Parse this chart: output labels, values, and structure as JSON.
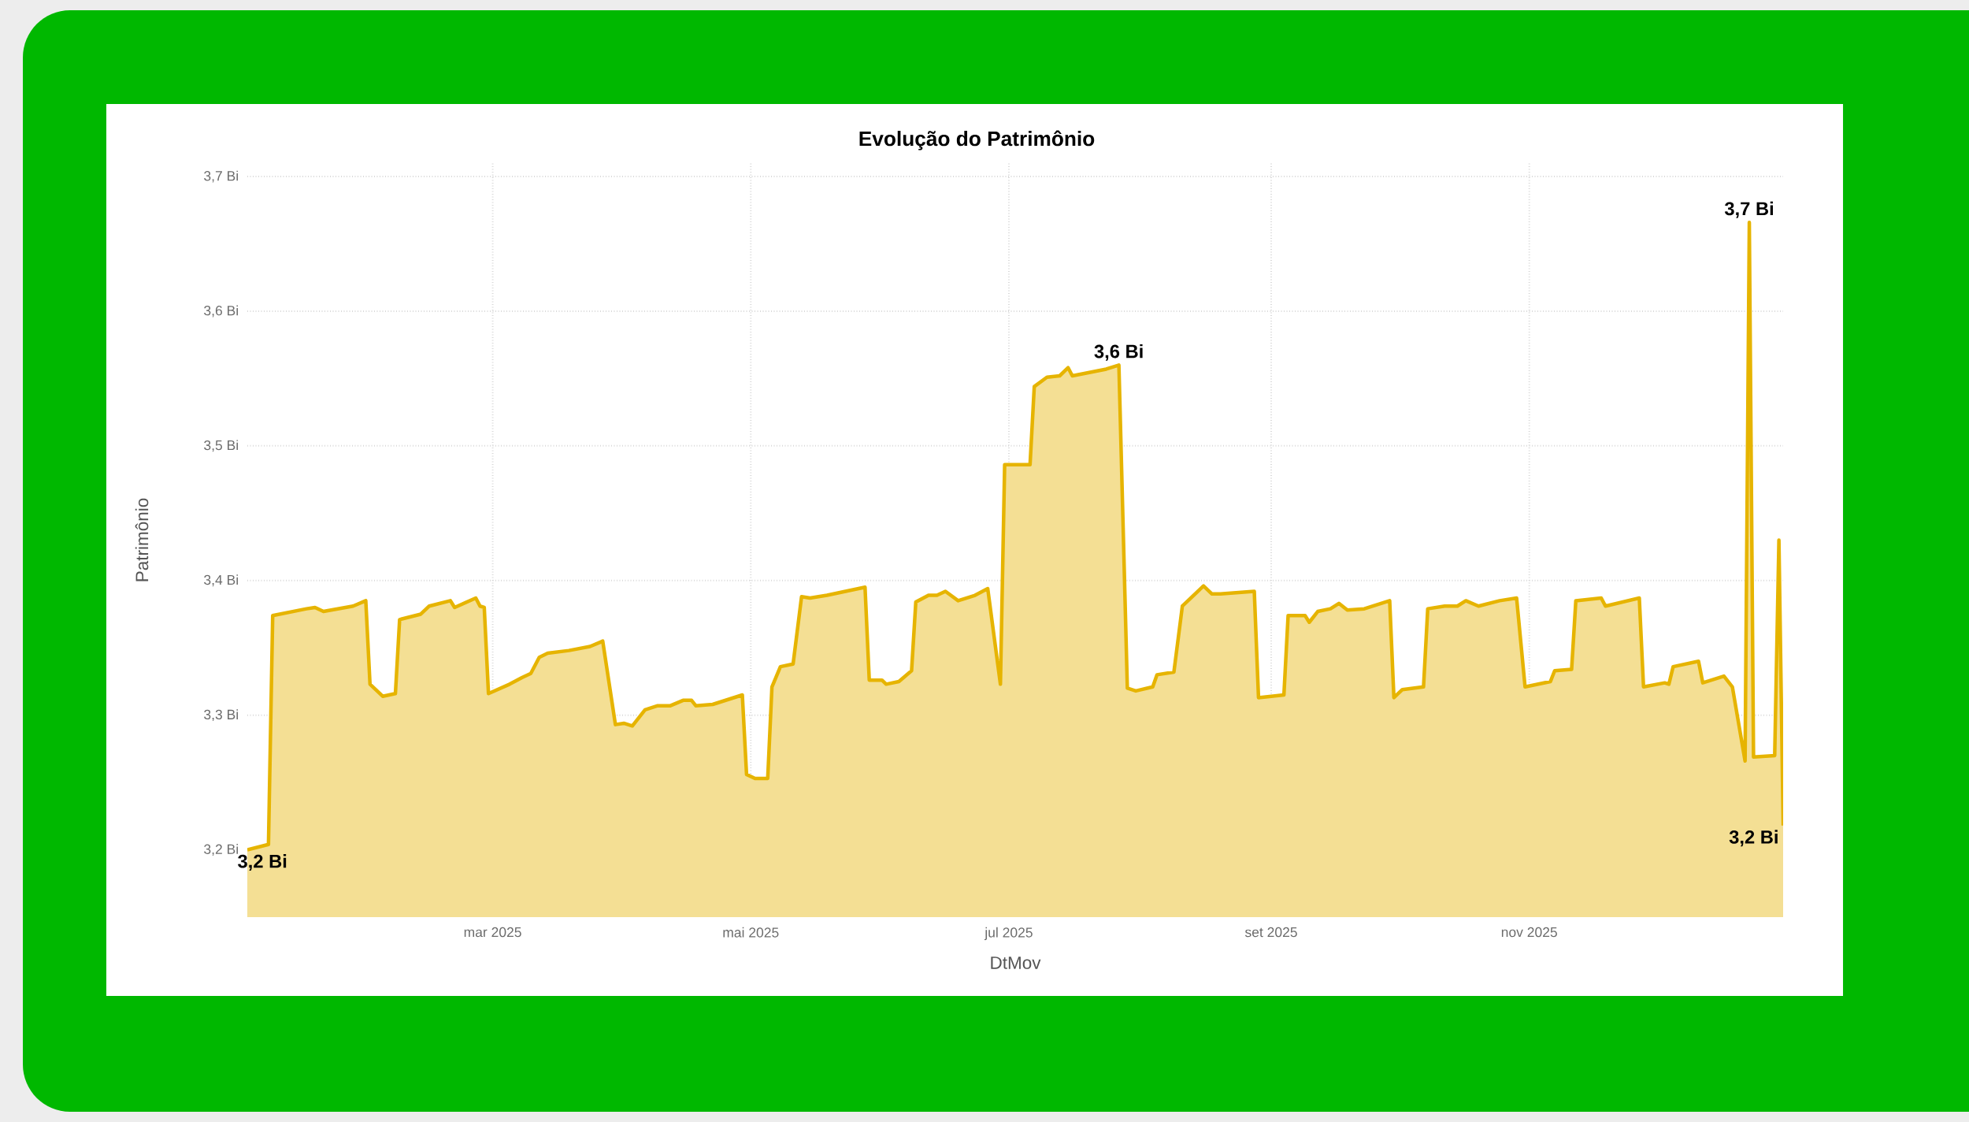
{
  "chart_data": {
    "type": "area",
    "title": "Evolução do Patrimônio",
    "xlabel": "DtMov",
    "ylabel": "Patrimônio",
    "x": [
      "2025-01-02",
      "2025-01-07",
      "2025-01-08",
      "2025-01-16",
      "2025-01-18",
      "2025-01-20",
      "2025-01-27",
      "2025-01-30",
      "2025-01-31",
      "2025-02-03",
      "2025-02-06",
      "2025-02-07",
      "2025-02-12",
      "2025-02-14",
      "2025-02-19",
      "2025-02-20",
      "2025-02-25",
      "2025-02-26",
      "2025-02-27",
      "2025-02-28",
      "2025-03-05",
      "2025-03-08",
      "2025-03-10",
      "2025-03-12",
      "2025-03-14",
      "2025-03-19",
      "2025-03-24",
      "2025-03-27",
      "2025-03-30",
      "2025-04-01",
      "2025-04-03",
      "2025-04-06",
      "2025-04-09",
      "2025-04-12",
      "2025-04-15",
      "2025-04-17",
      "2025-04-18",
      "2025-04-22",
      "2025-04-29",
      "2025-04-30",
      "2025-05-02",
      "2025-05-05",
      "2025-05-06",
      "2025-05-08",
      "2025-05-11",
      "2025-05-13",
      "2025-05-15",
      "2025-05-19",
      "2025-05-28",
      "2025-05-29",
      "2025-06-01",
      "2025-06-02",
      "2025-06-05",
      "2025-06-08",
      "2025-06-09",
      "2025-06-12",
      "2025-06-14",
      "2025-06-16",
      "2025-06-19",
      "2025-06-23",
      "2025-06-26",
      "2025-06-29",
      "2025-06-30",
      "2025-07-06",
      "2025-07-07",
      "2025-07-10",
      "2025-07-13",
      "2025-07-15",
      "2025-07-16",
      "2025-07-24",
      "2025-07-27",
      "2025-07-29",
      "2025-07-31",
      "2025-08-04",
      "2025-08-05",
      "2025-08-09",
      "2025-08-11",
      "2025-08-16",
      "2025-08-18",
      "2025-08-20",
      "2025-08-28",
      "2025-08-29",
      "2025-09-04",
      "2025-09-05",
      "2025-09-09",
      "2025-09-10",
      "2025-09-12",
      "2025-09-15",
      "2025-09-17",
      "2025-09-19",
      "2025-09-23",
      "2025-09-29",
      "2025-09-30",
      "2025-10-02",
      "2025-10-07",
      "2025-10-08",
      "2025-10-12",
      "2025-10-15",
      "2025-10-17",
      "2025-10-20",
      "2025-10-25",
      "2025-10-29",
      "2025-10-31",
      "2025-11-06",
      "2025-11-07",
      "2025-11-11",
      "2025-11-12",
      "2025-11-18",
      "2025-11-19",
      "2025-11-27",
      "2025-11-28",
      "2025-12-03",
      "2025-12-04",
      "2025-12-05",
      "2025-12-11",
      "2025-12-12",
      "2025-12-17",
      "2025-12-19",
      "2025-12-22",
      "2025-12-23",
      "2025-12-24",
      "2025-12-29",
      "2025-12-30",
      "2025-12-31"
    ],
    "series": [
      {
        "color": "#E6B400",
        "values": [
          3.2,
          3.204,
          3.374,
          3.379,
          3.38,
          3.377,
          3.381,
          3.385,
          3.323,
          3.314,
          3.316,
          3.371,
          3.375,
          3.381,
          3.385,
          3.38,
          3.387,
          3.381,
          3.38,
          3.316,
          3.323,
          3.328,
          3.331,
          3.343,
          3.346,
          3.348,
          3.351,
          3.355,
          3.293,
          3.294,
          3.292,
          3.304,
          3.307,
          3.307,
          3.311,
          3.311,
          3.307,
          3.308,
          3.315,
          3.256,
          3.253,
          3.253,
          3.321,
          3.336,
          3.338,
          3.388,
          3.387,
          3.389,
          3.395,
          3.326,
          3.326,
          3.323,
          3.325,
          3.333,
          3.384,
          3.389,
          3.389,
          3.392,
          3.385,
          3.389,
          3.394,
          3.323,
          3.486,
          3.486,
          3.544,
          3.551,
          3.552,
          3.558,
          3.552,
          3.557,
          3.56,
          3.32,
          3.318,
          3.321,
          3.33,
          3.332,
          3.381,
          3.396,
          3.39,
          3.39,
          3.392,
          3.313,
          3.315,
          3.374,
          3.374,
          3.369,
          3.377,
          3.379,
          3.383,
          3.378,
          3.379,
          3.385,
          3.313,
          3.319,
          3.321,
          3.379,
          3.381,
          3.381,
          3.385,
          3.381,
          3.385,
          3.387,
          3.321,
          3.325,
          3.333,
          3.334,
          3.385,
          3.387,
          3.381,
          3.387,
          3.321,
          3.324,
          3.323,
          3.336,
          3.34,
          3.324,
          3.329,
          3.321,
          3.266,
          3.666,
          3.269,
          3.27,
          3.43,
          3.218
        ]
      }
    ],
    "xlim": [
      "2025-01-02",
      "2025-12-31"
    ],
    "ylim": [
      3.15,
      3.71
    ],
    "xticks": [
      {
        "value": "2025-03-01",
        "label": "mar 2025"
      },
      {
        "value": "2025-05-01",
        "label": "mai 2025"
      },
      {
        "value": "2025-07-01",
        "label": "jul 2025"
      },
      {
        "value": "2025-09-01",
        "label": "set 2025"
      },
      {
        "value": "2025-11-01",
        "label": "nov 2025"
      }
    ],
    "yticks": [
      {
        "value": 3.2,
        "label": "3,2 Bi"
      },
      {
        "value": 3.3,
        "label": "3,3 Bi"
      },
      {
        "value": 3.4,
        "label": "3,4 Bi"
      },
      {
        "value": 3.5,
        "label": "3,5 Bi"
      },
      {
        "value": 3.6,
        "label": "3,6 Bi"
      },
      {
        "value": 3.7,
        "label": "3,7 Bi"
      }
    ],
    "grid": true,
    "annotations": [
      {
        "text": "3,2 Bi",
        "x": "2025-01-02",
        "y": 3.2
      },
      {
        "text": "3,6 Bi",
        "x": "2025-07-27",
        "y": 3.56
      },
      {
        "text": "3,7 Bi",
        "x": "2025-12-23",
        "y": 3.666
      },
      {
        "text": "3,2 Bi",
        "x": "2025-12-31",
        "y": 3.218
      }
    ]
  }
}
